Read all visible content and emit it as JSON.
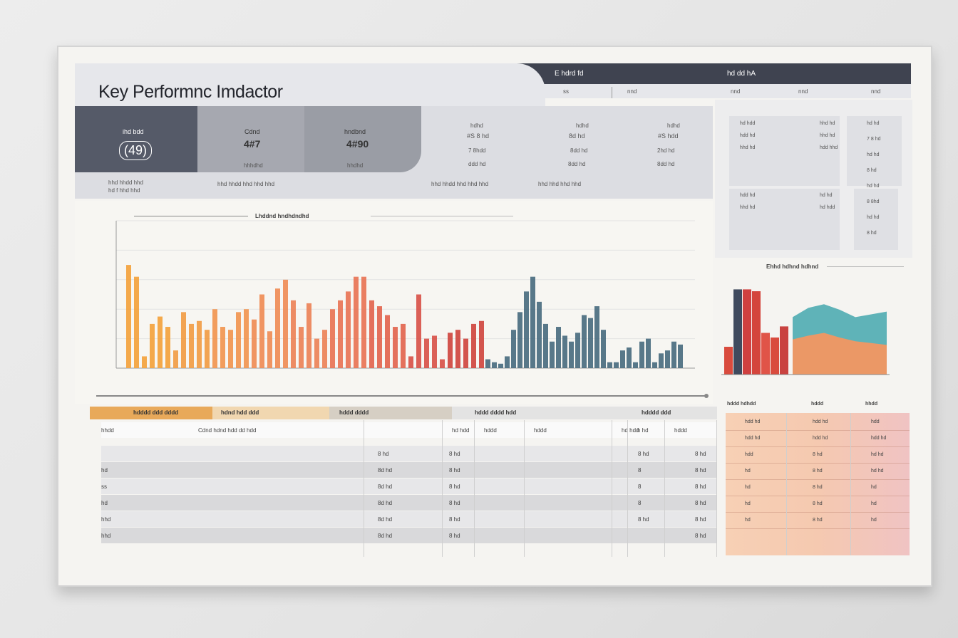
{
  "page": {
    "title": "Key Performnc Imdactor"
  },
  "header": {
    "right_label_1": "E hdrd fd",
    "right_label_2": "hd dd hA",
    "sub_labels": [
      "ss",
      "nnd",
      "nnd",
      "nnd",
      "nnd"
    ]
  },
  "kpis": [
    {
      "label": "ihd bdd",
      "value": "(49)",
      "note_1": "hhd hhdd hhd",
      "note_2": "hd f hhd hhd"
    },
    {
      "label": "Cdnd",
      "value": "4#7",
      "note_1": "hhhdhd"
    },
    {
      "label": "hndbnd",
      "value": "4#90",
      "note_1": "hhdhd"
    }
  ],
  "kpi_detail": [
    {
      "label": "hdhd",
      "v1": "#S 8 hd",
      "v2": "7 8hdd",
      "v3": "ddd hd"
    },
    {
      "label": "hdhd",
      "v1": "8d hd",
      "v2": "8dd hd",
      "v3": "8dd hd"
    },
    {
      "label": "hdhd",
      "v1": "#S hdd",
      "v2": "2hd hd",
      "v3": "8dd hd"
    }
  ],
  "kpi_footnotes": [
    "hhd hhdd hhd hhd hhd",
    "hhd hhd hhd hhd"
  ],
  "right_panel": {
    "card1": [
      "hd hdd",
      "hhd hd",
      "hdd hd",
      "hhd hd",
      "hhd hd",
      "hdd hhd",
      "hdd hd",
      "hd hd",
      "hhd hd",
      "hd hdd"
    ],
    "card2": [
      "hd hd",
      "7 8 hd",
      "hd hd",
      "8 hd",
      "hd hd",
      "8 8hd",
      "hd hd",
      "8 hd"
    ]
  },
  "main_chart_label": "Lhddnd hndhdndhd",
  "side_chart_label": "Ehhd hdhnd hdhnd",
  "chart_data": [
    {
      "type": "bar",
      "title": "Lhddnd hndhdndhd",
      "ylim": [
        0,
        100
      ],
      "yticks": [
        "",
        "",
        "",
        "",
        "",
        ""
      ],
      "grid": true,
      "series": [
        {
          "values": [
            70,
            62,
            8,
            30,
            35,
            28,
            12,
            38,
            30,
            32,
            26,
            40,
            28,
            26,
            38,
            40,
            33,
            50,
            25,
            54,
            60,
            46,
            28,
            44,
            20,
            26,
            40,
            46,
            52,
            62,
            62,
            46,
            42,
            36,
            28,
            30,
            8,
            50,
            20,
            22,
            6,
            24,
            26,
            20,
            30,
            32
          ]
        },
        {
          "values": [
            6,
            4,
            3,
            8,
            26,
            38,
            52,
            62,
            45,
            30,
            18,
            28,
            22,
            18,
            24,
            36,
            34,
            42,
            26,
            4,
            4,
            12,
            14,
            4,
            18,
            20,
            4,
            10,
            12,
            18,
            16
          ]
        }
      ]
    },
    {
      "type": "bar",
      "title": "Ehhd hdhnd hdhnd",
      "ylim": [
        0,
        100
      ],
      "series": [
        {
          "values": [
            30,
            92,
            92,
            90,
            45,
            40,
            52
          ]
        }
      ]
    },
    {
      "type": "area",
      "title": "Ehhd hdhnd hdhnd",
      "ylim": [
        0,
        100
      ],
      "series": [
        {
          "values": [
            62,
            72,
            76,
            70,
            62,
            65,
            68
          ]
        },
        {
          "values": [
            38,
            42,
            45,
            40,
            36,
            34,
            32
          ]
        }
      ]
    }
  ],
  "table": {
    "headers": [
      "hdddd ddd dddd",
      "hdnd hdd ddd",
      "hddd dddd",
      "hddd dddd hdd",
      "hdddd ddd"
    ],
    "subheaders": [
      "hhdd",
      "Cdnd hdnd hdd dd hdd",
      "hd hdd",
      "hddd",
      "hddd",
      "hd hdd",
      "h hd",
      "hddd"
    ],
    "rows": [
      [
        "",
        "8 hd",
        "8 hd",
        "",
        "",
        "",
        "8 hd",
        "8 hd"
      ],
      [
        "hd",
        "8d hd",
        "8 hd",
        "",
        "",
        "",
        "8",
        "8 hd"
      ],
      [
        "ss",
        "8d hd",
        "8 hd",
        "",
        "",
        "",
        "8",
        "8 hd"
      ],
      [
        "hd",
        "8d hd",
        "8 hd",
        "",
        "",
        "",
        "8",
        "8 hd"
      ],
      [
        "hhd",
        "8d hd",
        "8 hd",
        "",
        "",
        "",
        "8 hd",
        "8 hd"
      ],
      [
        "hhd",
        "8d hd",
        "8 hd",
        "",
        "",
        "",
        "",
        "8 hd"
      ]
    ]
  },
  "side_table": {
    "headers": [
      "hddd hdhdd",
      "hddd",
      "hhdd"
    ],
    "rows": [
      [
        "hdd hd",
        "hdd hd",
        "hdd"
      ],
      [
        "hdd hd",
        "hdd hd",
        "hdd hd"
      ],
      [
        "hdd",
        "8 hd",
        "hd hd"
      ],
      [
        "hd",
        "8 hd",
        "hd hd"
      ],
      [
        "hd",
        "8 hd",
        "hd"
      ],
      [
        "hd",
        "8 hd",
        "hd"
      ],
      [
        "hd",
        "8 hd",
        "hd"
      ]
    ]
  }
}
